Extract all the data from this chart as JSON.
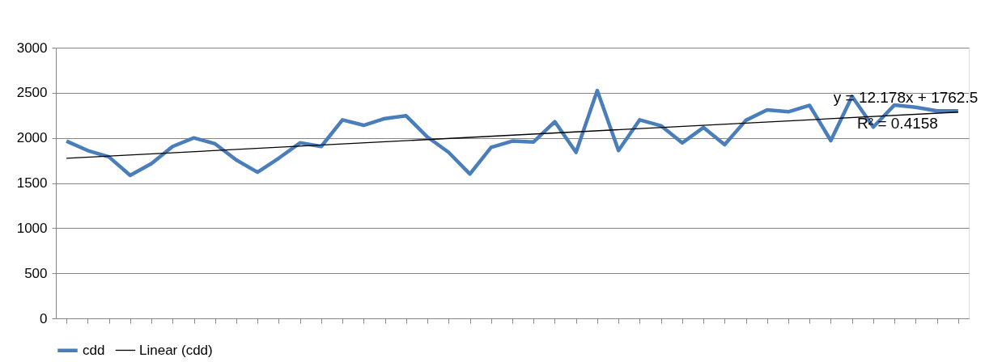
{
  "chart_data": {
    "type": "line",
    "categories": [
      null,
      null,
      null,
      null,
      null,
      null,
      null,
      null,
      null,
      null,
      null,
      null,
      null,
      null,
      null,
      null,
      null,
      null,
      null,
      null,
      null,
      null,
      null,
      null,
      null,
      null,
      null,
      null,
      null,
      null,
      null,
      null,
      null,
      null,
      null,
      null,
      null,
      null,
      null,
      null,
      null,
      null,
      null
    ],
    "series": [
      {
        "name": "cdd",
        "color": "#4a7ebb",
        "values": [
          1965,
          1860,
          1790,
          1585,
          1715,
          1905,
          2000,
          1935,
          1755,
          1620,
          1775,
          1945,
          1905,
          2200,
          2140,
          2215,
          2245,
          2010,
          1840,
          1600,
          1895,
          1965,
          1955,
          2180,
          1840,
          2525,
          1860,
          2200,
          2135,
          1945,
          2115,
          1925,
          2195,
          2310,
          2290,
          2360,
          1970,
          2460,
          2120,
          2365,
          2340,
          2300,
          2300
        ]
      },
      {
        "name": "Linear (cdd)",
        "type": "line",
        "color": "#000000",
        "values": [
          1775,
          null,
          null,
          null,
          null,
          null,
          null,
          null,
          null,
          null,
          null,
          null,
          null,
          null,
          null,
          null,
          null,
          null,
          null,
          null,
          null,
          null,
          null,
          null,
          null,
          null,
          null,
          null,
          null,
          null,
          null,
          null,
          null,
          null,
          null,
          null,
          null,
          null,
          null,
          null,
          null,
          null,
          2286
        ]
      }
    ],
    "ylim": [
      0,
      3000
    ],
    "yticks": [
      0,
      500,
      1000,
      1500,
      2000,
      2500,
      3000
    ],
    "grid": "y",
    "legend": "bottom",
    "tick_labels": "y",
    "marker": "none",
    "annotations": [
      "y = 12.178x + 1762.5",
      "R² = 0.4158"
    ]
  }
}
